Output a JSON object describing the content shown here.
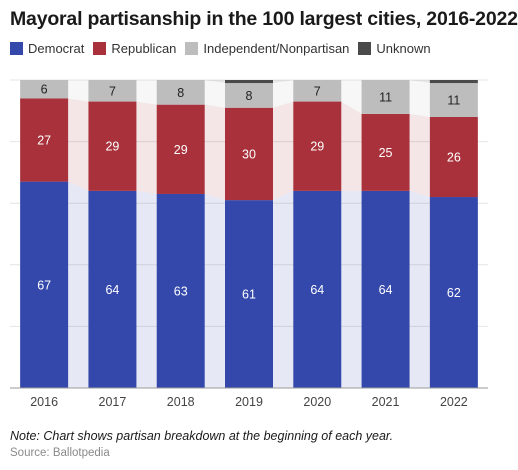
{
  "chart_data": {
    "type": "bar",
    "stacked": true,
    "title": "Mayoral partisanship in the 100 largest cities, 2016-2022",
    "categories": [
      "2016",
      "2017",
      "2018",
      "2019",
      "2020",
      "2021",
      "2022"
    ],
    "series": [
      {
        "name": "Democrat",
        "color": "#3447ab",
        "values": [
          67,
          64,
          63,
          61,
          64,
          64,
          62
        ]
      },
      {
        "name": "Republican",
        "color": "#a8313b",
        "values": [
          27,
          29,
          29,
          30,
          29,
          25,
          26
        ]
      },
      {
        "name": "Independent/Nonpartisan",
        "color": "#bdbdbd",
        "values": [
          6,
          7,
          8,
          8,
          7,
          11,
          11
        ]
      },
      {
        "name": "Unknown",
        "color": "#4a4a4a",
        "values": [
          0,
          0,
          0,
          1,
          0,
          0,
          1
        ]
      }
    ],
    "ylim": [
      0,
      100
    ],
    "grid": true,
    "legend_position": "top-left",
    "note": "Note: Chart shows partisan breakdown at the beginning of each year.",
    "source": "Source: Ballotpedia"
  }
}
